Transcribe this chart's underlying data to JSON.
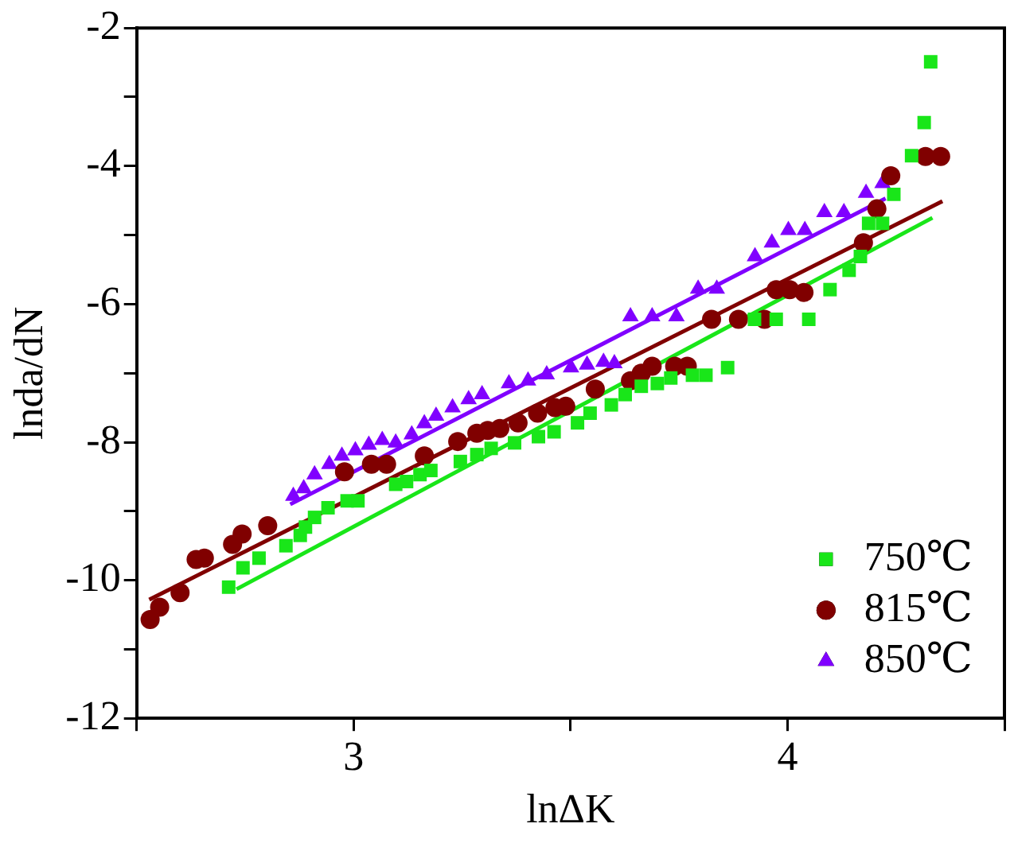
{
  "chart_data": {
    "type": "scatter",
    "xlabel": "lnΔK",
    "ylabel": "lnda/dN",
    "xlim": [
      2.5,
      4.5
    ],
    "xticks": [
      {
        "value": 2.5,
        "label": null
      },
      3,
      {
        "value": 3.5,
        "label": null
      },
      4,
      {
        "value": 4.5,
        "label": null
      }
    ],
    "ylim": [
      -12,
      -2
    ],
    "yticks": [
      -12,
      {
        "value": -11,
        "label": null
      },
      -10,
      {
        "value": -9,
        "label": null
      },
      -8,
      {
        "value": -7,
        "label": null
      },
      -6,
      {
        "value": -5,
        "label": null
      },
      -4,
      {
        "value": -3,
        "label": null
      },
      -2
    ],
    "grid": false,
    "legend": "bottom right",
    "series": [
      {
        "name": "750℃",
        "marker": "square",
        "color": "#19e619",
        "x": [
          2.712,
          2.745,
          2.782,
          2.844,
          2.877,
          2.889,
          2.91,
          2.941,
          2.985,
          3.01,
          3.097,
          3.122,
          3.153,
          3.178,
          3.246,
          3.284,
          3.317,
          3.371,
          3.426,
          3.462,
          3.516,
          3.545,
          3.594,
          3.626,
          3.663,
          3.7,
          3.731,
          3.781,
          3.812,
          3.862,
          3.924,
          3.974,
          4.049,
          4.098,
          4.142,
          4.168,
          4.187,
          4.219,
          4.245,
          4.286,
          4.315,
          4.33
        ],
        "values": [
          -10.1,
          -9.82,
          -9.68,
          -9.5,
          -9.35,
          -9.23,
          -9.09,
          -8.95,
          -8.85,
          -8.85,
          -8.61,
          -8.57,
          -8.47,
          -8.41,
          -8.28,
          -8.18,
          -8.09,
          -8.01,
          -7.92,
          -7.85,
          -7.72,
          -7.58,
          -7.46,
          -7.31,
          -7.19,
          -7.15,
          -7.07,
          -7.03,
          -7.03,
          -6.92,
          -6.22,
          -6.22,
          -6.22,
          -5.79,
          -5.51,
          -5.31,
          -4.83,
          -4.83,
          -4.41,
          -3.85,
          -3.37,
          -2.49
        ]
      },
      {
        "name": "815℃",
        "marker": "circle",
        "color": "#800000",
        "x": [
          2.531,
          2.553,
          2.6,
          2.637,
          2.656,
          2.721,
          2.743,
          2.802,
          2.979,
          3.041,
          3.076,
          3.163,
          3.24,
          3.284,
          3.309,
          3.337,
          3.379,
          3.424,
          3.464,
          3.489,
          3.557,
          3.638,
          3.663,
          3.688,
          3.74,
          3.769,
          3.825,
          3.887,
          3.947,
          3.974,
          4.005,
          4.038,
          4.175,
          4.206,
          4.238,
          4.318,
          4.353
        ],
        "values": [
          -10.57,
          -10.39,
          -10.18,
          -9.7,
          -9.68,
          -9.48,
          -9.33,
          -9.21,
          -8.43,
          -8.32,
          -8.32,
          -8.2,
          -7.99,
          -7.87,
          -7.83,
          -7.8,
          -7.72,
          -7.58,
          -7.5,
          -7.48,
          -7.23,
          -7.11,
          -7.0,
          -6.9,
          -6.9,
          -6.9,
          -6.22,
          -6.22,
          -6.22,
          -5.79,
          -5.79,
          -5.83,
          -5.11,
          -4.62,
          -4.14,
          -3.86,
          -3.86
        ]
      },
      {
        "name": "850℃",
        "marker": "triangle",
        "color": "#8000ff",
        "x": [
          2.861,
          2.885,
          2.91,
          2.944,
          2.973,
          3.004,
          3.035,
          3.066,
          3.097,
          3.134,
          3.163,
          3.19,
          3.228,
          3.265,
          3.296,
          3.358,
          3.402,
          3.445,
          3.501,
          3.538,
          3.576,
          3.601,
          3.638,
          3.688,
          3.744,
          3.794,
          3.837,
          3.925,
          3.964,
          4.002,
          4.04,
          4.085,
          4.13,
          4.181,
          4.219
        ],
        "values": [
          -8.78,
          -8.67,
          -8.47,
          -8.32,
          -8.2,
          -8.12,
          -8.04,
          -7.97,
          -8.01,
          -7.89,
          -7.73,
          -7.62,
          -7.5,
          -7.38,
          -7.31,
          -7.15,
          -7.11,
          -7.02,
          -6.92,
          -6.88,
          -6.84,
          -6.86,
          -6.18,
          -6.18,
          -6.18,
          -5.78,
          -5.78,
          -5.31,
          -5.11,
          -4.93,
          -4.93,
          -4.67,
          -4.67,
          -4.39,
          -4.25
        ]
      },
      {
        "type": "line",
        "marker": "none",
        "line_style": "solid",
        "color": "#19e619",
        "x": [
          2.73,
          4.334
        ],
        "values": [
          -10.13,
          -4.75
        ]
      },
      {
        "type": "line",
        "marker": "none",
        "line_style": "solid",
        "color": "#800000",
        "x": [
          2.529,
          4.357
        ],
        "values": [
          -10.28,
          -4.51
        ]
      },
      {
        "type": "line",
        "marker": "none",
        "line_style": "solid",
        "color": "#8000ff",
        "x": [
          2.854,
          4.226
        ],
        "values": [
          -8.9,
          -4.47
        ]
      }
    ]
  }
}
